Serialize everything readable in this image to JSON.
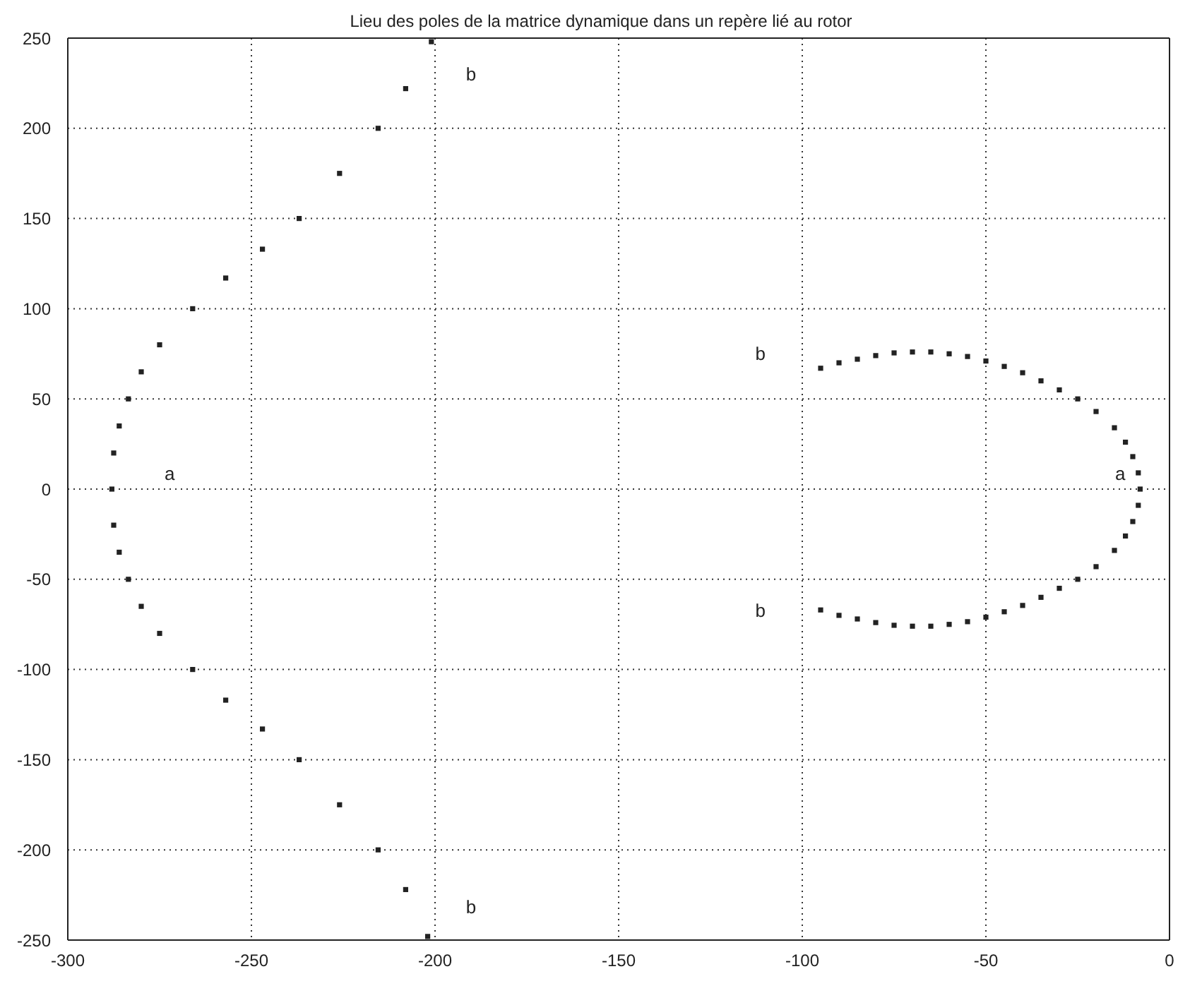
{
  "chart_data": {
    "type": "scatter",
    "title": "Lieu des poles de la matrice dynamique dans un repère lié au rotor",
    "series": [
      {
        "color": "#222222",
        "x": [
          -201,
          -208,
          -215.5,
          -226,
          -237,
          -247,
          -257,
          -266,
          -275,
          -280,
          -283.5,
          -286,
          -287.5,
          -288,
          -287.5,
          -286,
          -283.5,
          -280,
          -275,
          -266,
          -257,
          -247,
          -237,
          -226,
          -215.5,
          -208,
          -202
        ],
        "values": [
          248,
          222,
          200,
          175,
          150,
          133,
          117,
          100,
          80,
          65,
          50,
          35,
          20,
          0,
          -20,
          -35,
          -50,
          -65,
          -80,
          -100,
          -117,
          -133,
          -150,
          -175,
          -200,
          -222,
          -248
        ]
      },
      {
        "color": "#222222",
        "x": [
          -95,
          -90,
          -85,
          -80,
          -75,
          -70,
          -65,
          -60,
          -55,
          -50,
          -45,
          -40,
          -35,
          -30,
          -25,
          -20,
          -15,
          -12,
          -10,
          -8.5,
          -8,
          -8.5,
          -10,
          -12,
          -15,
          -20,
          -25,
          -30,
          -35,
          -40,
          -45,
          -50,
          -55,
          -60,
          -65,
          -70,
          -75,
          -80,
          -85,
          -90,
          -95
        ],
        "values": [
          67,
          70,
          72,
          74,
          75.5,
          76,
          76,
          75,
          73.5,
          71,
          68,
          64.5,
          60,
          55,
          50,
          43,
          34,
          26,
          18,
          9,
          0,
          -9,
          -18,
          -26,
          -34,
          -43,
          -50,
          -55,
          -60,
          -64.5,
          -68,
          -71,
          -73.5,
          -75,
          -76,
          -76,
          -75.5,
          -74,
          -72,
          -70,
          -67
        ]
      }
    ],
    "annotations": [
      "a",
      "a",
      "b",
      "b",
      "b",
      "b"
    ],
    "xlim": [
      -300,
      0
    ],
    "xticks": [
      -300,
      -250,
      -200,
      -150,
      -100,
      -50,
      0
    ],
    "ylim": [
      -250,
      250
    ],
    "yticks": [
      -250,
      -200,
      -150,
      -100,
      -50,
      0,
      50,
      100,
      150,
      200,
      250
    ],
    "grid": true,
    "marker": "square"
  }
}
